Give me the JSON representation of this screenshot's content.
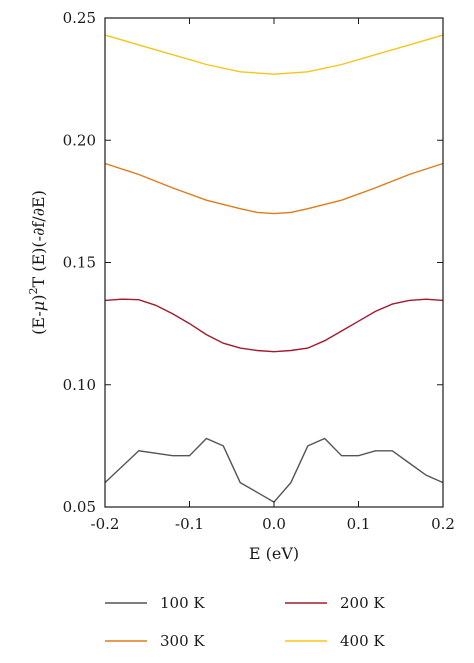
{
  "chart_data": {
    "type": "line",
    "xlabel": "E (eV)",
    "ylabel_parts": {
      "a": "(E-",
      "mu": "μ",
      "b": ")",
      "sup": "2",
      "c": "T (E)(-∂f/∂E)"
    },
    "xlim": [
      -0.2,
      0.2
    ],
    "ylim": [
      0.05,
      0.25
    ],
    "xticks": [
      -0.2,
      -0.1,
      0.0,
      0.1,
      0.2
    ],
    "xtick_labels": [
      "-0.2",
      "-0.1",
      "0.0",
      "0.1",
      "0.2"
    ],
    "yticks": [
      0.05,
      0.1,
      0.15,
      0.2,
      0.25
    ],
    "ytick_labels": [
      "0.05",
      "0.10",
      "0.15",
      "0.20",
      "0.25"
    ],
    "grid": false,
    "legend_position": "bottom",
    "series": [
      {
        "name": "100 K",
        "color": "#555555",
        "x": [
          -0.2,
          -0.16,
          -0.12,
          -0.1,
          -0.08,
          -0.06,
          -0.04,
          -0.02,
          0.0,
          0.02,
          0.04,
          0.06,
          0.08,
          0.1,
          0.12,
          0.14,
          0.16,
          0.18,
          0.2
        ],
        "y": [
          0.06,
          0.073,
          0.071,
          0.071,
          0.078,
          0.075,
          0.06,
          0.056,
          0.052,
          0.06,
          0.075,
          0.078,
          0.071,
          0.071,
          0.073,
          0.073,
          0.068,
          0.063,
          0.06
        ]
      },
      {
        "name": "200 K",
        "color": "#a31a2e",
        "x": [
          -0.2,
          -0.18,
          -0.16,
          -0.14,
          -0.12,
          -0.1,
          -0.08,
          -0.06,
          -0.04,
          -0.02,
          0.0,
          0.02,
          0.04,
          0.06,
          0.08,
          0.1,
          0.12,
          0.14,
          0.16,
          0.18,
          0.2
        ],
        "y": [
          0.1345,
          0.135,
          0.1348,
          0.1325,
          0.129,
          0.125,
          0.1205,
          0.117,
          0.115,
          0.114,
          0.1135,
          0.114,
          0.115,
          0.118,
          0.122,
          0.126,
          0.13,
          0.133,
          0.1345,
          0.135,
          0.1345
        ]
      },
      {
        "name": "300 K",
        "color": "#e07b1a",
        "x": [
          -0.2,
          -0.16,
          -0.12,
          -0.08,
          -0.04,
          -0.02,
          0.0,
          0.02,
          0.04,
          0.08,
          0.12,
          0.16,
          0.2
        ],
        "y": [
          0.1905,
          0.186,
          0.1805,
          0.1755,
          0.172,
          0.1705,
          0.17,
          0.1705,
          0.172,
          0.1755,
          0.1805,
          0.186,
          0.1905
        ]
      },
      {
        "name": "400 K",
        "color": "#f5c518",
        "x": [
          -0.2,
          -0.16,
          -0.12,
          -0.08,
          -0.04,
          0.0,
          0.04,
          0.08,
          0.12,
          0.16,
          0.2
        ],
        "y": [
          0.243,
          0.239,
          0.235,
          0.231,
          0.228,
          0.227,
          0.228,
          0.231,
          0.235,
          0.239,
          0.243
        ]
      }
    ]
  }
}
